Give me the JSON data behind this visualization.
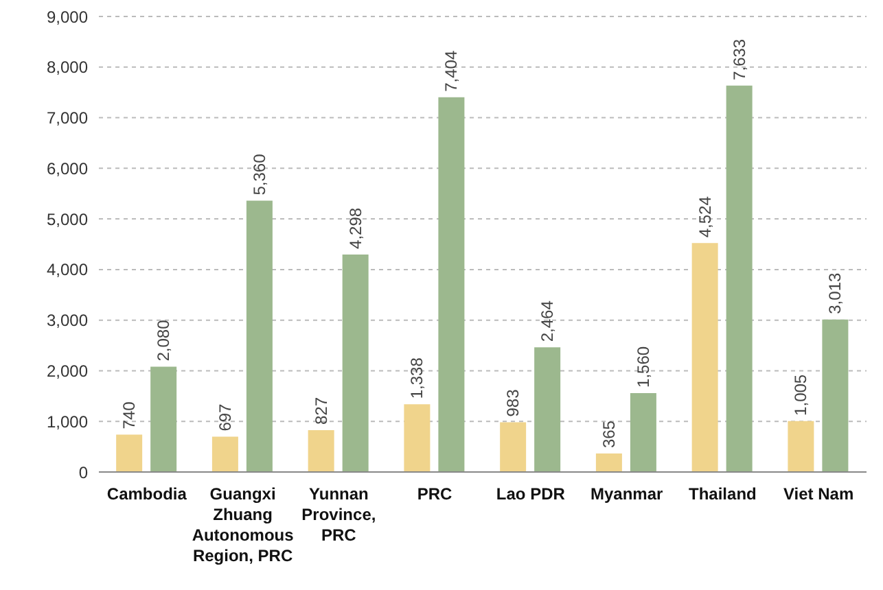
{
  "chart_data": {
    "type": "bar",
    "categories": [
      "Cambodia",
      "Guangxi Zhuang Autonomous Region, PRC",
      "Yunnan Province, PRC",
      "PRC",
      "Lao PDR",
      "Myanmar",
      "Thailand",
      "Viet Nam"
    ],
    "series": [
      {
        "color": "#f0d48c",
        "values": [
          740,
          697,
          827,
          1338,
          983,
          365,
          4524,
          1005
        ],
        "value_labels": [
          "740",
          "697",
          "827",
          "1,338",
          "983",
          "365",
          "4,524",
          "1,005"
        ]
      },
      {
        "color": "#9cb88e",
        "values": [
          2080,
          5360,
          4298,
          7404,
          2464,
          1560,
          7633,
          3013
        ],
        "value_labels": [
          "2,080",
          "5,360",
          "4,298",
          "7,404",
          "2,464",
          "1,560",
          "7,633",
          "3,013"
        ]
      }
    ],
    "ylim": [
      0,
      9000
    ],
    "yticks": [
      {
        "value": 0,
        "label": "0"
      },
      {
        "value": 1000,
        "label": "1,000"
      },
      {
        "value": 2000,
        "label": "2,000"
      },
      {
        "value": 3000,
        "label": "3,000"
      },
      {
        "value": 4000,
        "label": "4,000"
      },
      {
        "value": 5000,
        "label": "5,000"
      },
      {
        "value": 6000,
        "label": "6,000"
      },
      {
        "value": 7000,
        "label": "7,000"
      },
      {
        "value": 8000,
        "label": "8,000"
      },
      {
        "value": 9000,
        "label": "9,000"
      }
    ],
    "grid": "y",
    "legend": false
  }
}
